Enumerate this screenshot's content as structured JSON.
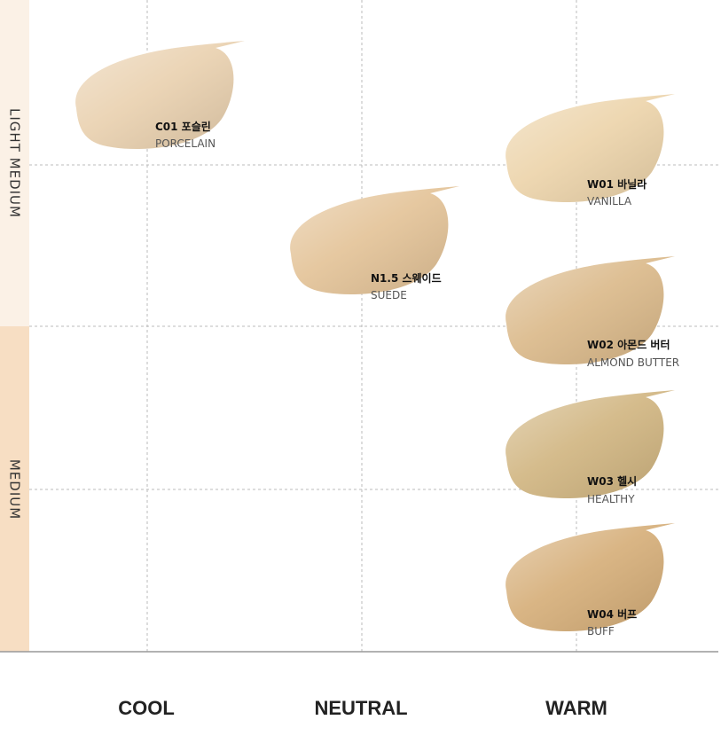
{
  "rows": [
    "LIGHT MEDIUM",
    "MEDIUM"
  ],
  "columns": [
    "COOL",
    "NEUTRAL",
    "WARM"
  ],
  "shades": [
    {
      "code": "C01 포슬린",
      "name": "PORCELAIN"
    },
    {
      "code": "N1.5 스웨이드",
      "name": "SUEDE"
    },
    {
      "code": "W01 바닐라",
      "name": "VANILLA"
    },
    {
      "code": "W02 아몬드 버터",
      "name": "ALMOND BUTTER"
    },
    {
      "code": "W03 헬시",
      "name": "HEALTHY"
    },
    {
      "code": "W04 버프",
      "name": "BUFF"
    }
  ]
}
